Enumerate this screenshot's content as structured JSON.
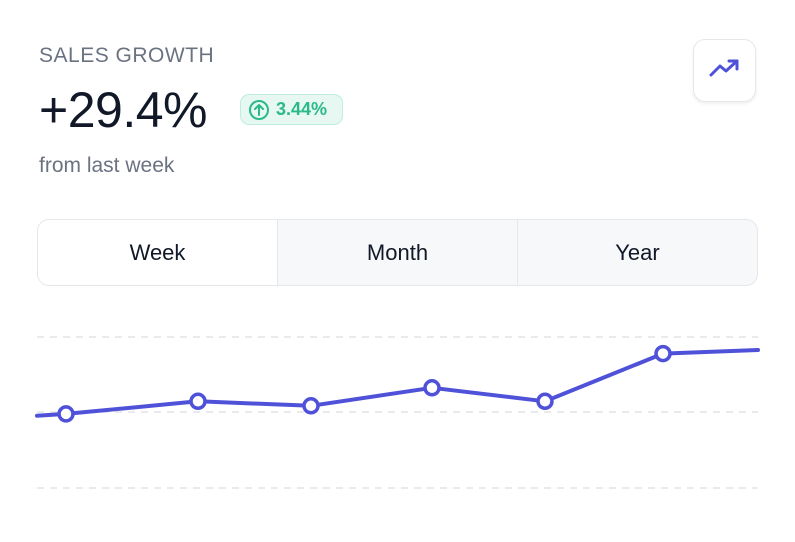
{
  "card": {
    "label": "SALES GROWTH",
    "value": "+29.4%",
    "badge": {
      "text": "3.44%",
      "icon": "arrow-up-circle-icon"
    },
    "subtitle": "from last week",
    "trend_button_icon": "trending-up-icon"
  },
  "tabs": [
    {
      "label": "Week",
      "selected": true
    },
    {
      "label": "Month",
      "selected": false
    },
    {
      "label": "Year",
      "selected": false
    }
  ],
  "colors": {
    "accent": "#4f52d9",
    "positive": "#2bb98a",
    "positive_bg": "#e6f8f1",
    "muted": "#6b7280"
  },
  "chart_data": {
    "type": "line",
    "grid": true,
    "ylim": [
      0,
      100
    ],
    "series": [
      {
        "values": [
          27,
          29,
          43,
          38,
          58,
          43,
          96,
          100
        ]
      }
    ],
    "markers": [
      false,
      true,
      true,
      true,
      true,
      true,
      true,
      false
    ]
  }
}
